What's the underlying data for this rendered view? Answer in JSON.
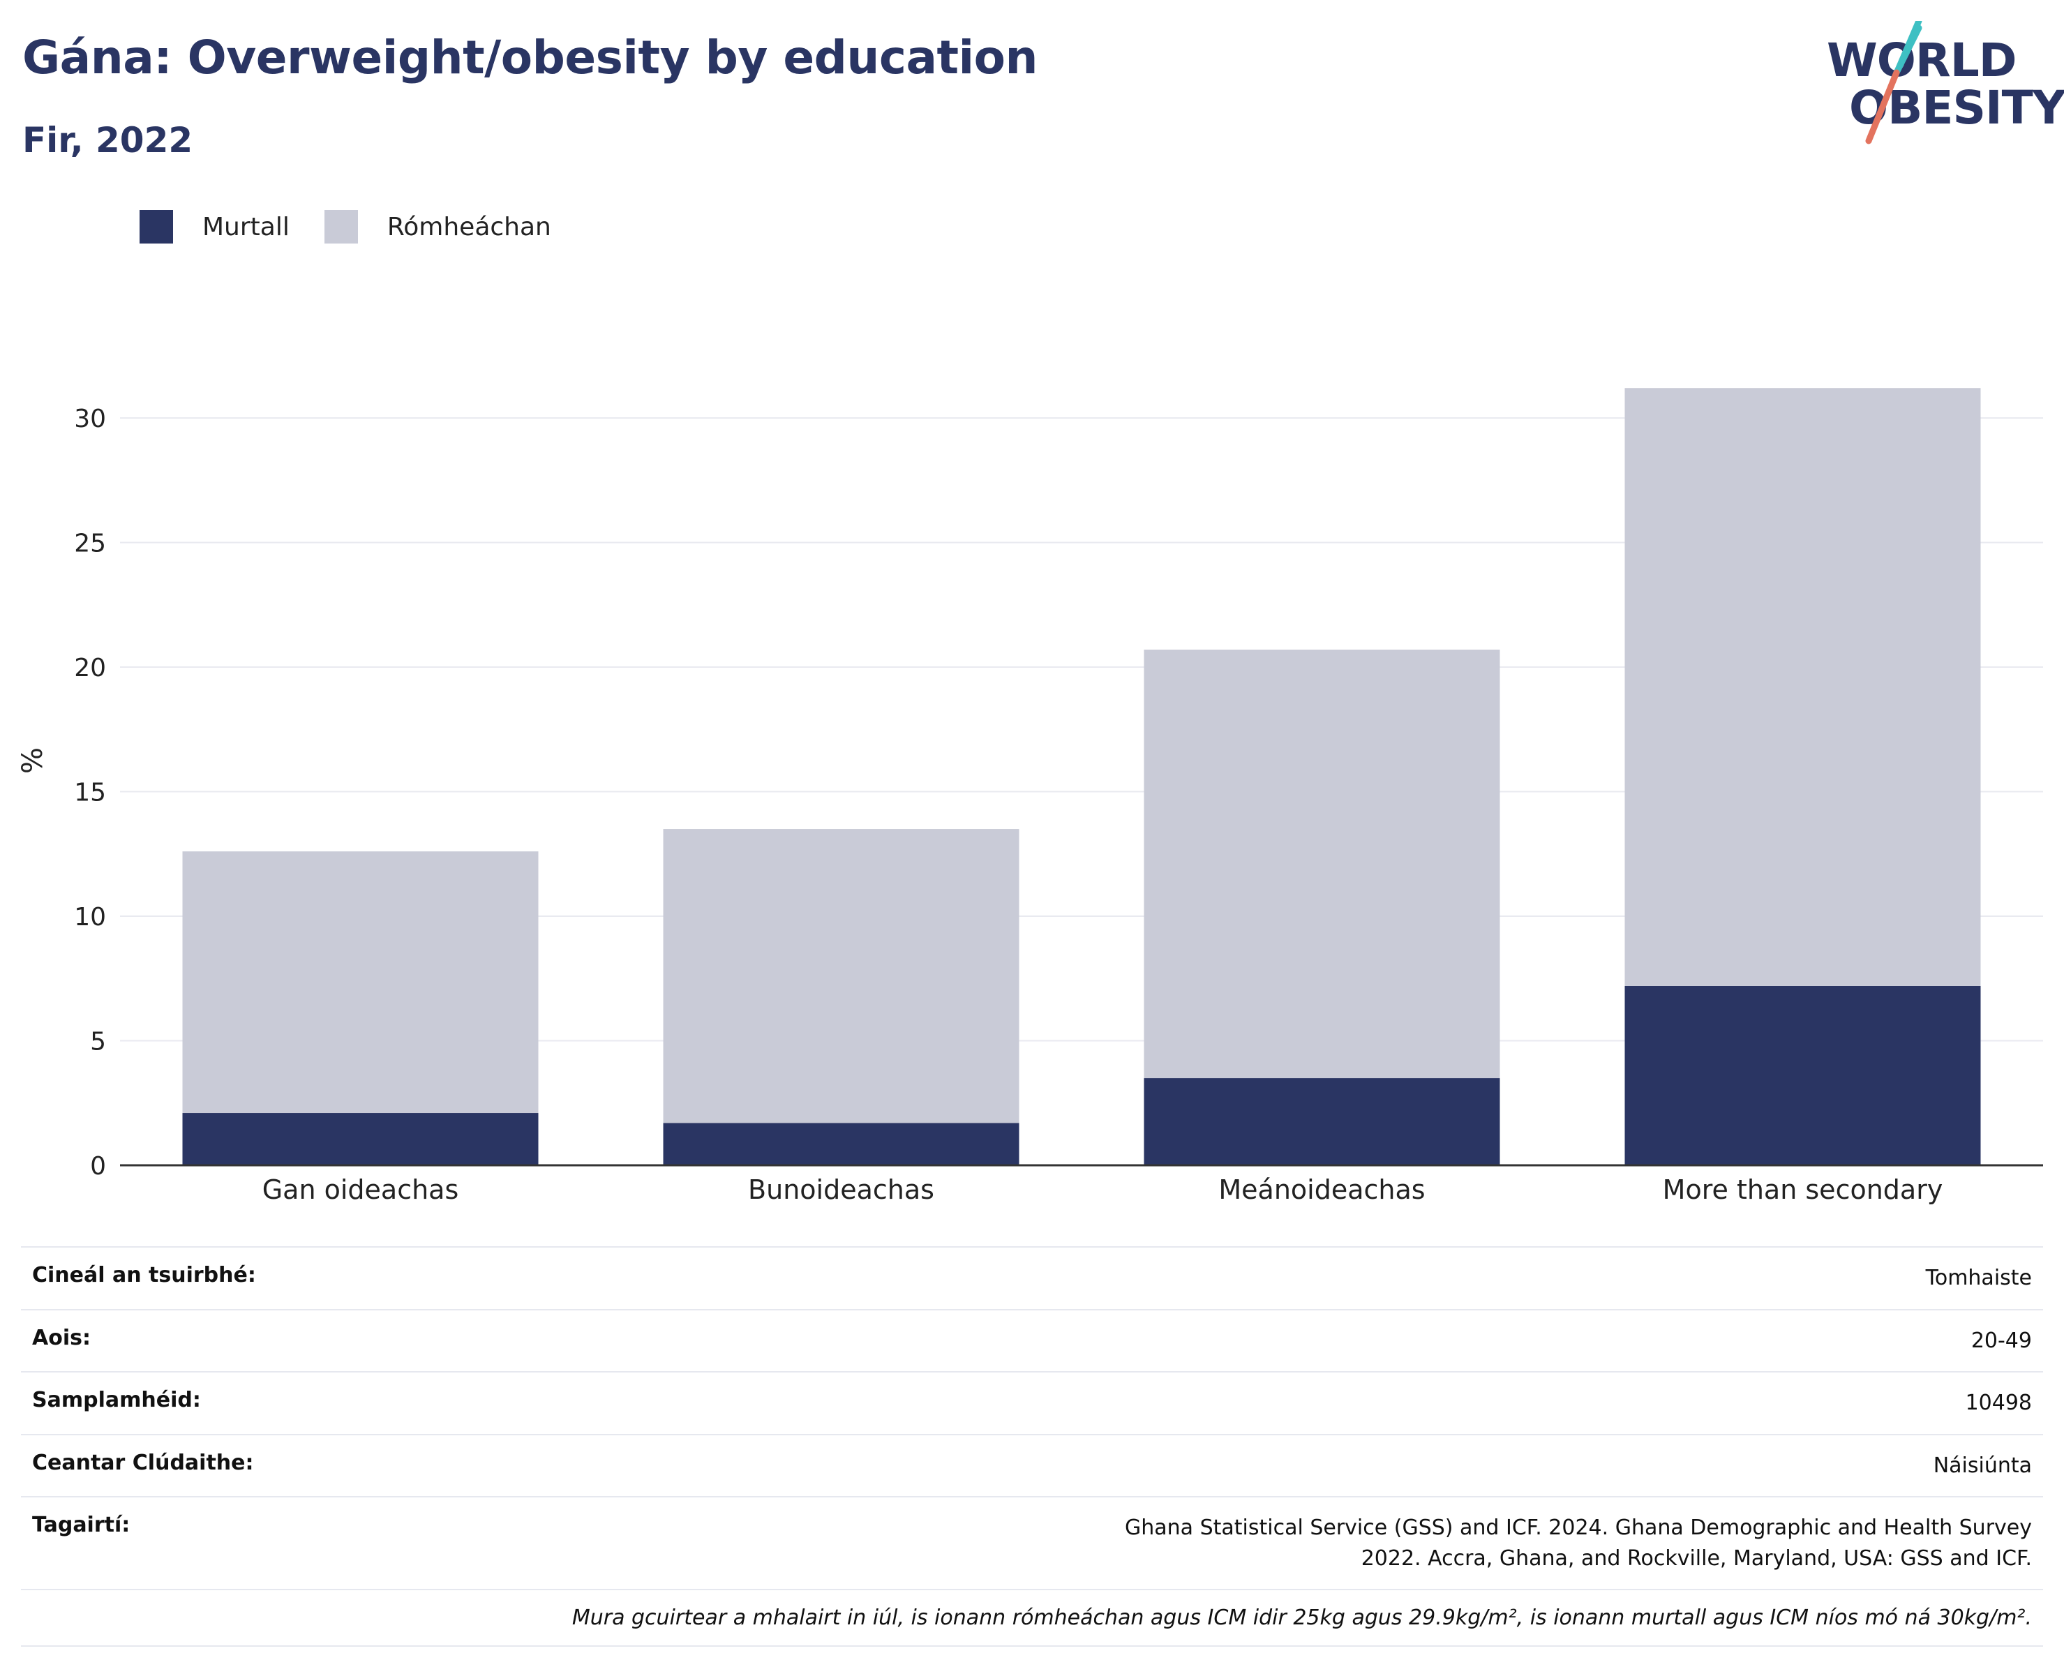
{
  "header": {
    "title": "Gána: Overweight/obesity by education",
    "subtitle": "Fir, 2022"
  },
  "logo": {
    "line1": "WORLD",
    "line2": "OBESITY",
    "colors": {
      "text": "#2a3563",
      "slash_top": "#3ec0c3",
      "slash_bottom": "#e3735e"
    }
  },
  "legend": [
    {
      "label": "Murtall",
      "color": "#2a3563"
    },
    {
      "label": "Rómheáchan",
      "color": "#c9cbd7"
    }
  ],
  "chart_data": {
    "type": "bar",
    "stacked": true,
    "categories": [
      "Gan oideachas",
      "Bunoideachas",
      "Meánoideachas",
      "More than secondary"
    ],
    "series": [
      {
        "name": "Murtall",
        "color": "#2a3563",
        "values": [
          2.1,
          1.7,
          3.5,
          7.2
        ]
      },
      {
        "name": "Rómheáchan",
        "color": "#c9cbd7",
        "values": [
          10.5,
          11.8,
          17.2,
          24.0
        ]
      }
    ],
    "ylabel": "%",
    "ylim": [
      0,
      33
    ],
    "yticks": [
      0,
      5,
      10,
      15,
      20,
      25,
      30
    ],
    "grid": true,
    "legend_position": "top-left"
  },
  "info": {
    "rows": [
      {
        "key": "Cineál an tsuirbhé:",
        "value": "Tomhaiste"
      },
      {
        "key": "Aois:",
        "value": "20-49"
      },
      {
        "key": "Samplamhéid:",
        "value": "10498"
      },
      {
        "key": "Ceantar Clúdaithe:",
        "value": "Náisiúnta"
      },
      {
        "key": "Tagairtí:",
        "value": "Ghana Statistical Service (GSS) and ICF. 2024. Ghana Demographic and Health Survey 2022. Accra, Ghana, and Rockville, Maryland, USA: GSS and ICF."
      }
    ],
    "note": "Mura gcuirtear a mhalairt in iúl, is ionann rómheáchan agus ICM idir 25kg agus 29.9kg/m², is ionann murtall agus ICM níos mó ná 30kg/m²."
  }
}
